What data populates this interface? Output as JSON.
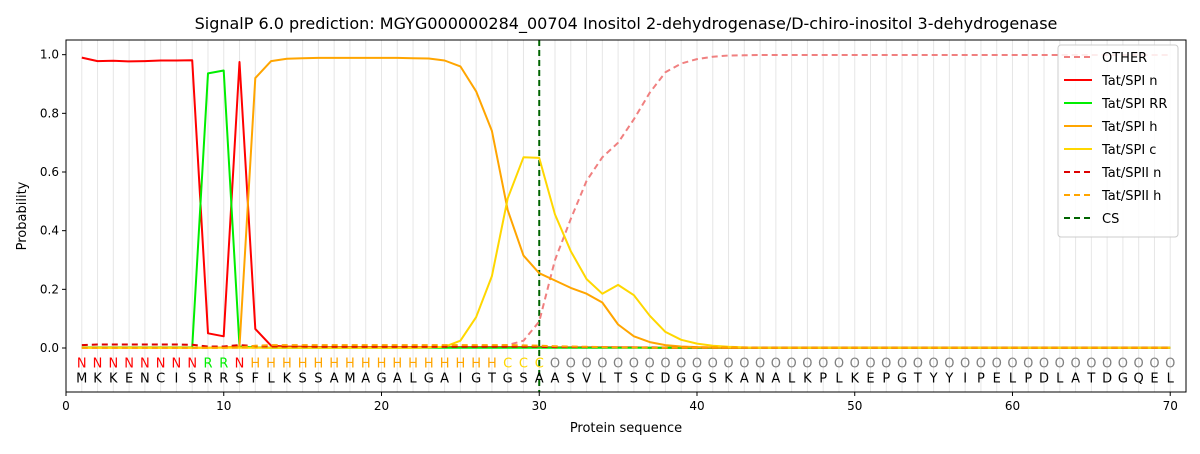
{
  "chart_data": {
    "type": "line",
    "title": "SignalP 6.0 prediction: MGYG000000284_00704 Inositol 2-dehydrogenase/D-chiro-inositol 3-dehydrogenase",
    "xlabel": "Protein sequence",
    "ylabel": "Probability",
    "xlim": [
      0,
      71
    ],
    "ylim": [
      -0.15,
      1.05
    ],
    "x_ticks": [
      0,
      10,
      20,
      30,
      40,
      50,
      60,
      70
    ],
    "y_ticks": [
      0.0,
      0.2,
      0.4,
      0.6,
      0.8,
      1.0
    ],
    "x_tick_labels": [
      "0",
      "10",
      "20",
      "30",
      "40",
      "50",
      "60",
      "70"
    ],
    "y_tick_labels": [
      "0.0",
      "0.2",
      "0.4",
      "0.6",
      "0.8",
      "1.0"
    ],
    "grid": "vertical lines at each residue position",
    "legend_position": "top-right",
    "sequence": [
      "M",
      "K",
      "K",
      "E",
      "N",
      "C",
      "I",
      "S",
      "R",
      "R",
      "S",
      "F",
      "L",
      "K",
      "S",
      "S",
      "A",
      "M",
      "A",
      "G",
      "A",
      "L",
      "G",
      "A",
      "I",
      "G",
      "T",
      "G",
      "S",
      "A",
      "A",
      "S",
      "V",
      "L",
      "T",
      "S",
      "C",
      "D",
      "G",
      "G",
      "S",
      "K",
      "A",
      "N",
      "A",
      "L",
      "K",
      "P",
      "L",
      "K",
      "E",
      "P",
      "G",
      "T",
      "Y",
      "Y",
      "I",
      "P",
      "E",
      "L",
      "P",
      "D",
      "L",
      "A",
      "T",
      "D",
      "G",
      "Q",
      "E",
      "L"
    ],
    "labels": [
      "N",
      "N",
      "N",
      "N",
      "N",
      "N",
      "N",
      "N",
      "R",
      "R",
      "N",
      "H",
      "H",
      "H",
      "H",
      "H",
      "H",
      "H",
      "H",
      "H",
      "H",
      "H",
      "H",
      "H",
      "H",
      "H",
      "H",
      "C",
      "C",
      "C",
      "O",
      "O",
      "O",
      "O",
      "O",
      "O",
      "O",
      "O",
      "O",
      "O",
      "O",
      "O",
      "O",
      "O",
      "O",
      "O",
      "O",
      "O",
      "O",
      "O",
      "O",
      "O",
      "O",
      "O",
      "O",
      "O",
      "O",
      "O",
      "O",
      "O",
      "O",
      "O",
      "O",
      "O",
      "O",
      "O",
      "O",
      "O",
      "O",
      "O"
    ],
    "label_colors": {
      "N": "#ff0000",
      "R": "#00ee00",
      "H": "#ffa500",
      "C": "#ffd700",
      "O": "#808080"
    },
    "cs_position": 30,
    "series": [
      {
        "name": "OTHER",
        "color": "#f08080",
        "dash": "dashed",
        "values": [
          0.001,
          0.001,
          0.001,
          0.001,
          0.001,
          0.001,
          0.001,
          0.001,
          0.001,
          0.001,
          0.001,
          0.001,
          0.001,
          0.001,
          0.001,
          0.001,
          0.001,
          0.001,
          0.001,
          0.001,
          0.001,
          0.001,
          0.002,
          0.003,
          0.004,
          0.005,
          0.007,
          0.01,
          0.025,
          0.09,
          0.3,
          0.44,
          0.57,
          0.65,
          0.7,
          0.78,
          0.87,
          0.94,
          0.97,
          0.985,
          0.993,
          0.997,
          0.998,
          0.999,
          0.999,
          0.999,
          0.999,
          0.999,
          0.999,
          0.999,
          0.999,
          0.999,
          0.999,
          0.999,
          0.999,
          0.999,
          0.999,
          0.999,
          0.999,
          0.999,
          0.999,
          0.999,
          0.999,
          0.999,
          0.999,
          0.999,
          0.999,
          0.999,
          0.999,
          0.999
        ]
      },
      {
        "name": "Tat/SPI n",
        "color": "#ff0000",
        "dash": "solid",
        "values": [
          0.99,
          0.978,
          0.979,
          0.977,
          0.978,
          0.98,
          0.98,
          0.981,
          0.05,
          0.04,
          0.975,
          0.065,
          0.008,
          0.005,
          0.004,
          0.003,
          0.003,
          0.003,
          0.003,
          0.003,
          0.003,
          0.003,
          0.003,
          0.003,
          0.003,
          0.003,
          0.003,
          0.003,
          0.003,
          0.003,
          0.002,
          0.002,
          0.002,
          0.002,
          0.002,
          0.002,
          0.001,
          0.001,
          0.001,
          0.001,
          0.001,
          0.001,
          0.001,
          0.001,
          0.001,
          0.001,
          0.001,
          0.001,
          0.001,
          0.001,
          0.001,
          0.001,
          0.001,
          0.001,
          0.001,
          0.001,
          0.001,
          0.001,
          0.001,
          0.001,
          0.001,
          0.001,
          0.001,
          0.001,
          0.001,
          0.001,
          0.001,
          0.001,
          0.001,
          0.001
        ]
      },
      {
        "name": "Tat/SPI RR",
        "color": "#00ee00",
        "dash": "solid",
        "values": [
          0.002,
          0.002,
          0.002,
          0.002,
          0.002,
          0.002,
          0.002,
          0.002,
          0.936,
          0.946,
          0.005,
          0.002,
          0.001,
          0.001,
          0.001,
          0.001,
          0.001,
          0.001,
          0.001,
          0.001,
          0.001,
          0.001,
          0.001,
          0.001,
          0.001,
          0.001,
          0.001,
          0.001,
          0.001,
          0.001,
          0.001,
          0.001,
          0.001,
          0.001,
          0.001,
          0.001,
          0.001,
          0.001,
          0.001,
          0.001,
          0.001,
          0.001,
          0.001,
          0.001,
          0.001,
          0.001,
          0.001,
          0.001,
          0.001,
          0.001,
          0.001,
          0.001,
          0.001,
          0.001,
          0.001,
          0.001,
          0.001,
          0.001,
          0.001,
          0.001,
          0.001,
          0.001,
          0.001,
          0.001,
          0.001,
          0.001,
          0.001,
          0.001,
          0.001,
          0.001
        ]
      },
      {
        "name": "Tat/SPI h",
        "color": "#ffa500",
        "dash": "solid",
        "values": [
          0.001,
          0.001,
          0.001,
          0.001,
          0.001,
          0.001,
          0.001,
          0.001,
          0.001,
          0.002,
          0.005,
          0.92,
          0.978,
          0.986,
          0.988,
          0.989,
          0.989,
          0.989,
          0.989,
          0.989,
          0.989,
          0.988,
          0.987,
          0.98,
          0.96,
          0.875,
          0.74,
          0.47,
          0.315,
          0.255,
          0.23,
          0.205,
          0.185,
          0.155,
          0.08,
          0.04,
          0.02,
          0.01,
          0.005,
          0.003,
          0.002,
          0.001,
          0.001,
          0.001,
          0.001,
          0.001,
          0.001,
          0.001,
          0.001,
          0.001,
          0.001,
          0.001,
          0.001,
          0.001,
          0.001,
          0.001,
          0.001,
          0.001,
          0.001,
          0.001,
          0.001,
          0.001,
          0.001,
          0.001,
          0.001,
          0.001,
          0.001,
          0.001,
          0.001,
          0.001
        ]
      },
      {
        "name": "Tat/SPI c",
        "color": "#ffd700",
        "dash": "solid",
        "values": [
          0.001,
          0.001,
          0.001,
          0.001,
          0.001,
          0.001,
          0.001,
          0.001,
          0.001,
          0.001,
          0.001,
          0.001,
          0.001,
          0.001,
          0.001,
          0.001,
          0.001,
          0.001,
          0.001,
          0.001,
          0.001,
          0.001,
          0.002,
          0.004,
          0.025,
          0.105,
          0.245,
          0.51,
          0.65,
          0.648,
          0.455,
          0.33,
          0.235,
          0.185,
          0.215,
          0.18,
          0.11,
          0.055,
          0.028,
          0.015,
          0.008,
          0.004,
          0.002,
          0.001,
          0.001,
          0.001,
          0.001,
          0.001,
          0.001,
          0.001,
          0.001,
          0.001,
          0.001,
          0.001,
          0.001,
          0.001,
          0.001,
          0.001,
          0.001,
          0.001,
          0.001,
          0.001,
          0.001,
          0.001,
          0.001,
          0.001,
          0.001,
          0.001,
          0.001,
          0.001
        ]
      },
      {
        "name": "Tat/SPII n",
        "color": "#dd0000",
        "dash": "dashed",
        "values": [
          0.01,
          0.012,
          0.012,
          0.012,
          0.012,
          0.012,
          0.012,
          0.011,
          0.005,
          0.005,
          0.01,
          0.006,
          0.005,
          0.005,
          0.005,
          0.004,
          0.004,
          0.004,
          0.004,
          0.004,
          0.004,
          0.004,
          0.004,
          0.004,
          0.004,
          0.004,
          0.004,
          0.004,
          0.004,
          0.004,
          0.003,
          0.003,
          0.003,
          0.003,
          0.002,
          0.002,
          0.002,
          0.001,
          0.001,
          0.001,
          0.001,
          0.001,
          0.001,
          0.001,
          0.001,
          0.001,
          0.001,
          0.001,
          0.001,
          0.001,
          0.001,
          0.001,
          0.001,
          0.001,
          0.001,
          0.001,
          0.001,
          0.001,
          0.001,
          0.001,
          0.001,
          0.001,
          0.001,
          0.001,
          0.001,
          0.001,
          0.001,
          0.001,
          0.001,
          0.001
        ]
      },
      {
        "name": "Tat/SPII h",
        "color": "#ffa500",
        "dash": "dashed",
        "values": [
          0.001,
          0.001,
          0.001,
          0.001,
          0.001,
          0.001,
          0.001,
          0.001,
          0.001,
          0.001,
          0.002,
          0.008,
          0.01,
          0.01,
          0.01,
          0.01,
          0.01,
          0.01,
          0.01,
          0.01,
          0.01,
          0.01,
          0.01,
          0.01,
          0.01,
          0.01,
          0.01,
          0.01,
          0.009,
          0.008,
          0.006,
          0.005,
          0.004,
          0.003,
          0.002,
          0.002,
          0.001,
          0.001,
          0.001,
          0.001,
          0.001,
          0.001,
          0.001,
          0.001,
          0.001,
          0.001,
          0.001,
          0.001,
          0.001,
          0.001,
          0.001,
          0.001,
          0.001,
          0.001,
          0.001,
          0.001,
          0.001,
          0.001,
          0.001,
          0.001,
          0.001,
          0.001,
          0.001,
          0.001,
          0.001,
          0.001,
          0.001,
          0.001,
          0.001,
          0.001
        ]
      }
    ],
    "legend": [
      {
        "name": "OTHER",
        "color": "#f08080",
        "dash": "dashed"
      },
      {
        "name": "Tat/SPI n",
        "color": "#ff0000",
        "dash": "solid"
      },
      {
        "name": "Tat/SPI RR",
        "color": "#00ee00",
        "dash": "solid"
      },
      {
        "name": "Tat/SPI h",
        "color": "#ffa500",
        "dash": "solid"
      },
      {
        "name": "Tat/SPI c",
        "color": "#ffd700",
        "dash": "solid"
      },
      {
        "name": "Tat/SPII n",
        "color": "#dd0000",
        "dash": "dashed"
      },
      {
        "name": "Tat/SPII h",
        "color": "#ffa500",
        "dash": "dashed"
      },
      {
        "name": "CS",
        "color": "#006400",
        "dash": "dashed"
      }
    ]
  }
}
